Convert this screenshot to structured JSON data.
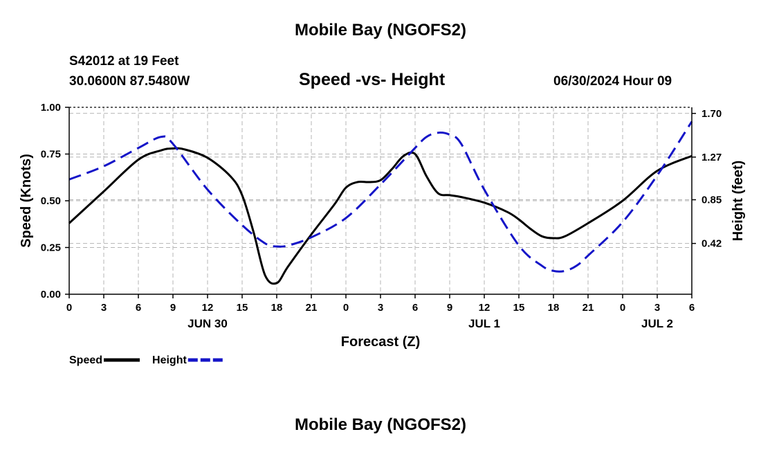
{
  "header": {
    "title": "Mobile Bay (NGOFS2)",
    "station": "S42012 at 19 Feet",
    "coords": "30.0600N  87.5480W",
    "subtitle": "Speed -vs- Height",
    "datetime": "06/30/2024 Hour 09"
  },
  "footer": {
    "title": "Mobile Bay (NGOFS2)"
  },
  "chart_data": {
    "type": "line",
    "xlabel": "Forecast (Z)",
    "ylabel": "Speed (Knots)",
    "y2label": "Height (feet)",
    "x_ticks": [
      {
        "hour": 0,
        "label": "0"
      },
      {
        "hour": 3,
        "label": "3"
      },
      {
        "hour": 6,
        "label": "6"
      },
      {
        "hour": 9,
        "label": "9"
      },
      {
        "hour": 12,
        "label": "12"
      },
      {
        "hour": 15,
        "label": "15"
      },
      {
        "hour": 18,
        "label": "18"
      },
      {
        "hour": 21,
        "label": "21"
      },
      {
        "hour": 24,
        "label": "0"
      },
      {
        "hour": 27,
        "label": "3"
      },
      {
        "hour": 30,
        "label": "6"
      },
      {
        "hour": 33,
        "label": "9"
      },
      {
        "hour": 36,
        "label": "12"
      },
      {
        "hour": 39,
        "label": "15"
      },
      {
        "hour": 42,
        "label": "18"
      },
      {
        "hour": 45,
        "label": "21"
      },
      {
        "hour": 48,
        "label": "0"
      },
      {
        "hour": 51,
        "label": "3"
      },
      {
        "hour": 54,
        "label": "6"
      }
    ],
    "day_labels": [
      {
        "hour": 12,
        "label": "JUN 30"
      },
      {
        "hour": 36,
        "label": "JUL 1"
      },
      {
        "hour": 51,
        "label": "JUL 2"
      }
    ],
    "xlim": [
      0,
      54
    ],
    "ylim": [
      0,
      1.0
    ],
    "y_ticks": [
      "0.00",
      "0.25",
      "0.50",
      "0.75",
      "1.00"
    ],
    "y2lim": [
      -0.08,
      1.76
    ],
    "y2_ticks": [
      "0.42",
      "0.85",
      "1.27",
      "1.70"
    ],
    "grid": true,
    "legend": {
      "position": "bottom-left",
      "items": [
        {
          "name": "Speed",
          "color": "#000000",
          "style": "solid"
        },
        {
          "name": "Height",
          "color": "#1515c8",
          "style": "dashed"
        }
      ]
    },
    "series": [
      {
        "name": "Speed",
        "axis": "left",
        "color": "#000000",
        "style": "solid",
        "x": [
          0,
          3,
          6,
          8,
          9,
          10,
          12,
          14,
          15,
          16,
          17,
          18,
          19,
          21,
          23,
          24,
          25,
          26,
          27,
          28,
          29,
          30,
          31,
          32,
          33,
          34,
          36,
          38,
          39,
          40,
          41,
          42,
          43,
          45,
          48,
          51,
          54
        ],
        "y": [
          0.38,
          0.55,
          0.72,
          0.77,
          0.78,
          0.775,
          0.73,
          0.63,
          0.53,
          0.33,
          0.1,
          0.06,
          0.15,
          0.32,
          0.48,
          0.57,
          0.6,
          0.6,
          0.61,
          0.67,
          0.74,
          0.75,
          0.63,
          0.54,
          0.53,
          0.52,
          0.49,
          0.44,
          0.4,
          0.35,
          0.31,
          0.3,
          0.31,
          0.38,
          0.5,
          0.66,
          0.74
        ]
      },
      {
        "name": "Height",
        "axis": "right",
        "color": "#1515c8",
        "style": "dashed",
        "x": [
          0,
          3,
          6,
          8,
          9,
          12,
          15,
          17,
          18,
          19,
          21,
          24,
          27,
          30,
          31,
          32,
          33,
          34,
          36,
          39,
          41,
          42,
          43,
          44,
          45,
          48,
          51,
          54
        ],
        "y": [
          1.05,
          1.18,
          1.36,
          1.47,
          1.4,
          0.95,
          0.6,
          0.42,
          0.39,
          0.4,
          0.48,
          0.67,
          1.0,
          1.36,
          1.47,
          1.51,
          1.49,
          1.4,
          0.95,
          0.4,
          0.2,
          0.15,
          0.15,
          0.2,
          0.3,
          0.63,
          1.09,
          1.62
        ]
      }
    ]
  }
}
